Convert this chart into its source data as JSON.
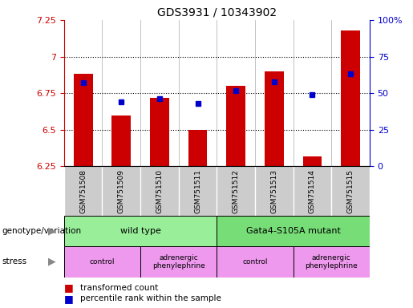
{
  "title": "GDS3931 / 10343902",
  "samples": [
    "GSM751508",
    "GSM751509",
    "GSM751510",
    "GSM751511",
    "GSM751512",
    "GSM751513",
    "GSM751514",
    "GSM751515"
  ],
  "red_values": [
    6.88,
    6.6,
    6.72,
    6.5,
    6.8,
    6.9,
    6.32,
    7.18
  ],
  "blue_values": [
    57,
    44,
    46,
    43,
    52,
    58,
    49,
    63
  ],
  "ylim_left": [
    6.25,
    7.25
  ],
  "ylim_right": [
    0,
    100
  ],
  "yticks_left": [
    6.25,
    6.5,
    6.75,
    7.0,
    7.25
  ],
  "yticks_right": [
    0,
    25,
    50,
    75,
    100
  ],
  "ytick_labels_left": [
    "6.25",
    "6.5",
    "6.75",
    "7",
    "7.25"
  ],
  "ytick_labels_right": [
    "0",
    "25",
    "50",
    "75",
    "100%"
  ],
  "hlines": [
    6.5,
    6.75,
    7.0
  ],
  "bar_color": "#cc0000",
  "dot_color": "#0000cc",
  "bar_bottom": 6.25,
  "genotype_groups": [
    {
      "label": "wild type",
      "start": 0,
      "end": 4,
      "color": "#99ee99"
    },
    {
      "label": "Gata4-S105A mutant",
      "start": 4,
      "end": 8,
      "color": "#77dd77"
    }
  ],
  "stress_groups": [
    {
      "label": "control",
      "start": 0,
      "end": 2,
      "color": "#ee99ee"
    },
    {
      "label": "adrenergic\nphenylephrine",
      "start": 2,
      "end": 4,
      "color": "#ee99ee"
    },
    {
      "label": "control",
      "start": 4,
      "end": 6,
      "color": "#ee99ee"
    },
    {
      "label": "adrenergic\nphenylephrine",
      "start": 6,
      "end": 8,
      "color": "#ee99ee"
    }
  ],
  "legend_red_label": "transformed count",
  "legend_blue_label": "percentile rank within the sample",
  "xlabel_genotype": "genotype/variation",
  "xlabel_stress": "stress",
  "axis_color_left": "#cc0000",
  "axis_color_right": "#0000cc",
  "tick_bg_color": "#cccccc",
  "bar_width": 0.5
}
